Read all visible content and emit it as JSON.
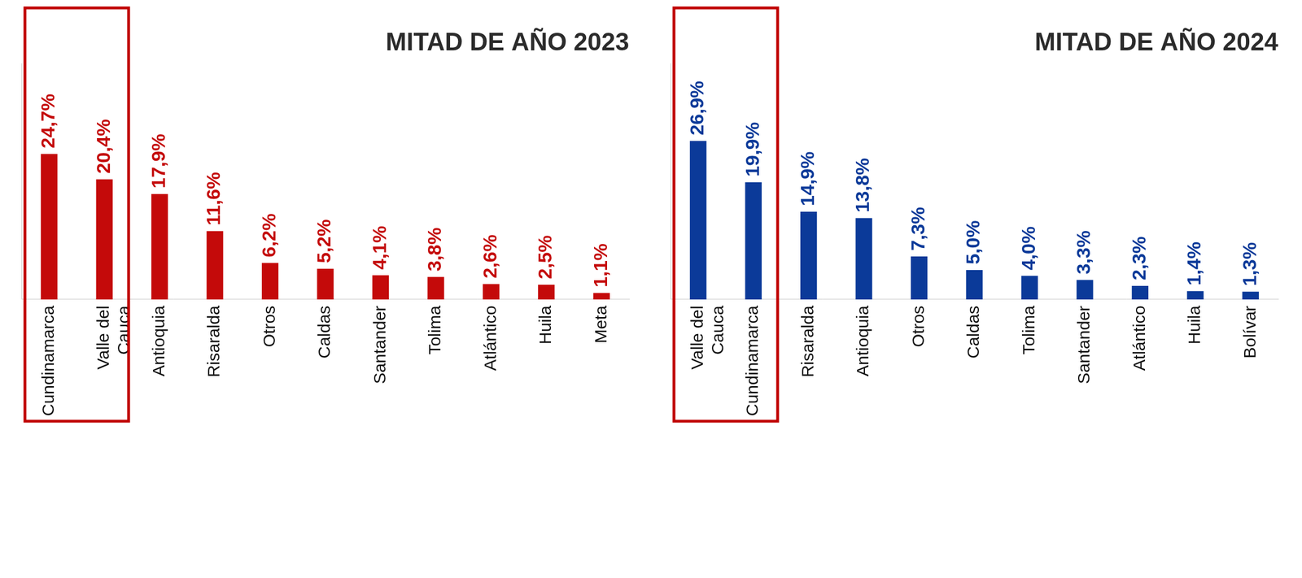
{
  "chart_data": [
    {
      "type": "bar",
      "title": "MITAD DE AÑO 2023",
      "categories": [
        "Cundinamarca",
        "Valle del Cauca",
        "Antioquia",
        "Risaralda",
        "Otros",
        "Caldas",
        "Santander",
        "Tolima",
        "Atlántico",
        "Huila",
        "Meta"
      ],
      "values": [
        24.7,
        20.4,
        17.9,
        11.6,
        6.2,
        5.2,
        4.1,
        3.8,
        2.6,
        2.5,
        1.1
      ],
      "value_labels": [
        "24,7%",
        "20,4%",
        "17,9%",
        "11,6%",
        "6,2%",
        "5,2%",
        "4,1%",
        "3,8%",
        "2,6%",
        "2,5%",
        "1,1%"
      ],
      "color": "#c40a0a",
      "ylim": [
        0,
        40
      ],
      "tick_labels": "x",
      "data_labels": true,
      "grid": false
    },
    {
      "type": "bar",
      "title": "MITAD DE AÑO 2024",
      "categories": [
        "Valle del Cauca",
        "Cundinamarca",
        "Risaralda",
        "Antioquia",
        "Otros",
        "Caldas",
        "Tolima",
        "Santander",
        "Atlántico",
        "Huila",
        "Bolívar"
      ],
      "values": [
        26.9,
        19.9,
        14.9,
        13.8,
        7.3,
        5.0,
        4.0,
        3.3,
        2.3,
        1.4,
        1.3
      ],
      "value_labels": [
        "26,9%",
        "19,9%",
        "14,9%",
        "13,8%",
        "7,3%",
        "5,0%",
        "4,0%",
        "3,3%",
        "2,3%",
        "1,4%",
        "1,3%"
      ],
      "color": "#0b3a99",
      "ylim": [
        0,
        40
      ],
      "tick_labels": "x",
      "data_labels": true,
      "grid": false
    }
  ]
}
